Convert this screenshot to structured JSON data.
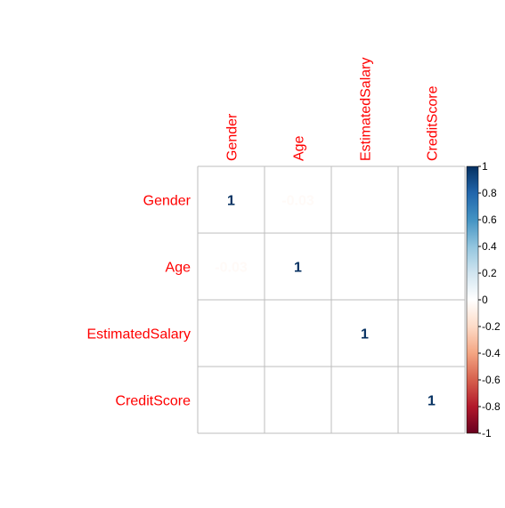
{
  "chart_data": {
    "type": "heatmap",
    "variables": [
      "Gender",
      "Age",
      "EstimatedSalary",
      "CreditScore"
    ],
    "matrix": [
      [
        1,
        -0.03,
        0,
        0
      ],
      [
        -0.03,
        1,
        0,
        0
      ],
      [
        0,
        0,
        1,
        0
      ],
      [
        0,
        0,
        0,
        1
      ]
    ],
    "displayed_labels": [
      [
        "1",
        "-0.03",
        "",
        ""
      ],
      [
        "-0.03",
        "1",
        "",
        ""
      ],
      [
        "",
        "",
        "1",
        ""
      ],
      [
        "",
        "",
        "",
        "1"
      ]
    ],
    "colorbar": {
      "range": [
        -1,
        1
      ],
      "ticks": [
        "1",
        "0.8",
        "0.6",
        "0.4",
        "0.2",
        "0",
        "-0.2",
        "-0.4",
        "-0.6",
        "-0.8",
        "-1"
      ],
      "tick_values": [
        1,
        0.8,
        0.6,
        0.4,
        0.2,
        0,
        -0.2,
        -0.4,
        -0.6,
        -0.8,
        -1
      ],
      "palette": [
        "#67001F",
        "#B2182B",
        "#D6604D",
        "#F4A582",
        "#FDDBC7",
        "#FFFFFF",
        "#D1E5F0",
        "#92C5DE",
        "#4393C3",
        "#2166AC",
        "#053061"
      ]
    },
    "label_color": "#FF0000",
    "grid_color": "#BEBEBE",
    "grid": true
  }
}
